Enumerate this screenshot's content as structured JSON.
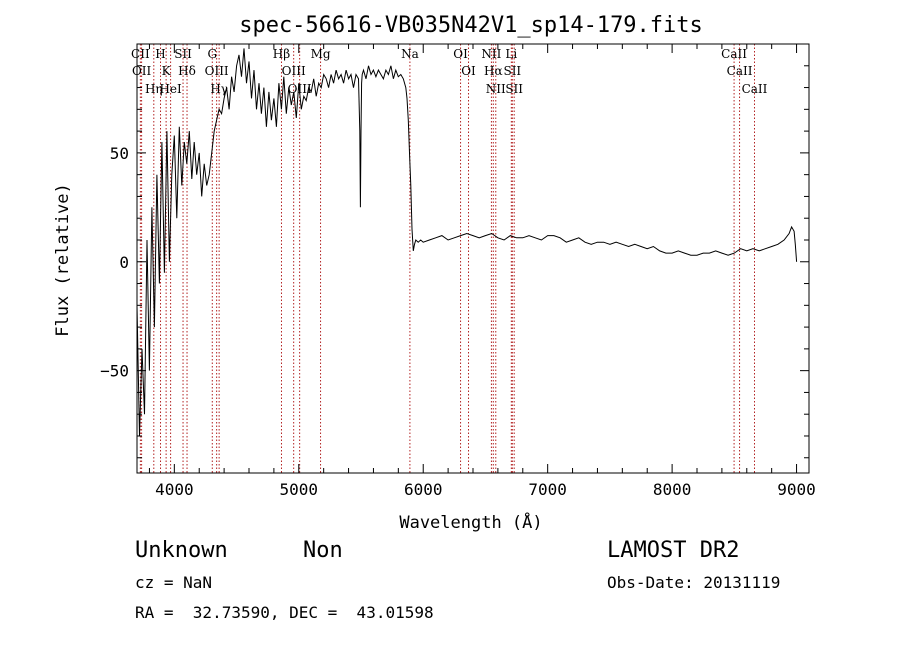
{
  "chart_data": {
    "type": "line",
    "title": "spec-56616-VB035N42V1_sp14-179.fits",
    "xlabel": "Wavelength (Å)",
    "ylabel": "Flux (relative)",
    "xlim": [
      3700,
      9100
    ],
    "ylim": [
      -97,
      100
    ],
    "xticks": [
      "4000",
      "5000",
      "6000",
      "7000",
      "8000",
      "9000"
    ],
    "yticks": [
      "−50",
      "0",
      "50"
    ],
    "grid": false,
    "series": [
      {
        "x": [
          3700,
          3720,
          3740,
          3760,
          3780,
          3800,
          3820,
          3840,
          3860,
          3880,
          3900,
          3920,
          3940,
          3960,
          3980,
          4000,
          4020,
          4040,
          4060,
          4080,
          4100,
          4120,
          4140,
          4160,
          4180,
          4200,
          4220,
          4240,
          4260,
          4280,
          4300,
          4320,
          4340,
          4360,
          4380,
          4400,
          4420,
          4440,
          4460,
          4480,
          4500,
          4520,
          4540,
          4560,
          4580,
          4600,
          4620,
          4640,
          4660,
          4680,
          4700,
          4720,
          4740,
          4760,
          4780,
          4800,
          4820,
          4840,
          4860,
          4880,
          4900,
          4920,
          4940,
          4960,
          4980,
          5000,
          5020,
          5040,
          5060,
          5080,
          5100,
          5120,
          5140,
          5160,
          5180,
          5200,
          5220,
          5240,
          5260,
          5280,
          5300,
          5320,
          5340,
          5360,
          5380,
          5400,
          5420,
          5440,
          5460,
          5480,
          5490,
          5495,
          5500,
          5505,
          5510,
          5520,
          5540,
          5560,
          5580,
          5600,
          5620,
          5640,
          5660,
          5680,
          5700,
          5720,
          5740,
          5760,
          5780,
          5800,
          5820,
          5840,
          5860,
          5870,
          5880,
          5890,
          5900,
          5910,
          5920,
          5930,
          5940,
          5960,
          5980,
          6000,
          6050,
          6100,
          6150,
          6200,
          6250,
          6300,
          6350,
          6400,
          6450,
          6500,
          6550,
          6600,
          6650,
          6700,
          6750,
          6800,
          6850,
          6900,
          6950,
          7000,
          7050,
          7100,
          7150,
          7200,
          7250,
          7300,
          7350,
          7400,
          7450,
          7500,
          7550,
          7600,
          7650,
          7700,
          7750,
          7800,
          7850,
          7900,
          7950,
          8000,
          8050,
          8100,
          8150,
          8200,
          8250,
          8300,
          8350,
          8400,
          8450,
          8500,
          8550,
          8600,
          8650,
          8700,
          8750,
          8800,
          8850,
          8900,
          8940,
          8960,
          8980,
          8990,
          9000
        ],
        "y": [
          -20,
          -80,
          -40,
          -70,
          10,
          -50,
          25,
          -30,
          40,
          -10,
          55,
          -5,
          60,
          0,
          40,
          58,
          20,
          62,
          35,
          55,
          45,
          60,
          38,
          55,
          40,
          50,
          30,
          45,
          35,
          40,
          50,
          60,
          65,
          70,
          68,
          75,
          80,
          70,
          85,
          78,
          90,
          95,
          85,
          98,
          82,
          92,
          75,
          88,
          70,
          82,
          68,
          80,
          62,
          78,
          65,
          75,
          62,
          82,
          70,
          85,
          68,
          80,
          72,
          78,
          66,
          82,
          70,
          76,
          74,
          80,
          78,
          84,
          76,
          82,
          80,
          86,
          84,
          80,
          86,
          82,
          88,
          84,
          86,
          82,
          88,
          84,
          86,
          80,
          86,
          84,
          60,
          25,
          60,
          82,
          86,
          88,
          84,
          90,
          86,
          88,
          85,
          88,
          86,
          84,
          88,
          86,
          90,
          84,
          88,
          85,
          86,
          84,
          80,
          75,
          65,
          50,
          35,
          15,
          5,
          8,
          10,
          9,
          10,
          9,
          10,
          11,
          12,
          10,
          11,
          12,
          13,
          12,
          11,
          12,
          13,
          11,
          10,
          12,
          11,
          11,
          12,
          11,
          10,
          12,
          12,
          11,
          9,
          10,
          11,
          9,
          8,
          9,
          9,
          8,
          9,
          8,
          7,
          8,
          7,
          6,
          7,
          5,
          4,
          4,
          5,
          4,
          3,
          3,
          4,
          4,
          5,
          4,
          3,
          4,
          6,
          5,
          6,
          5,
          6,
          7,
          8,
          10,
          13,
          16,
          14,
          8,
          0
        ]
      }
    ],
    "annotations": [
      {
        "label": "CII",
        "x": 3727
      },
      {
        "label": "OII",
        "x": 3737
      },
      {
        "label": "Hη",
        "x": 3835
      },
      {
        "label": "H",
        "x": 3889
      },
      {
        "label": "K",
        "x": 3934
      },
      {
        "label": "HeI",
        "x": 3970
      },
      {
        "label": "SII",
        "x": 4070
      },
      {
        "label": "Hδ",
        "x": 4102
      },
      {
        "label": "G",
        "x": 4305
      },
      {
        "label": "OIII",
        "x": 4340
      },
      {
        "label": "Hγ",
        "x": 4360
      },
      {
        "label": "Hβ",
        "x": 4861
      },
      {
        "label": "OIII",
        "x": 4959
      },
      {
        "label": "OIII",
        "x": 5007
      },
      {
        "label": "Mg",
        "x": 5175
      },
      {
        "label": "Na",
        "x": 5893
      },
      {
        "label": "OI",
        "x": 6300
      },
      {
        "label": "OI",
        "x": 6364
      },
      {
        "label": "NII",
        "x": 6548
      },
      {
        "label": "Hα",
        "x": 6563
      },
      {
        "label": "NII",
        "x": 6583
      },
      {
        "label": "Li",
        "x": 6708
      },
      {
        "label": "SII",
        "x": 6716
      },
      {
        "label": "SII",
        "x": 6731
      },
      {
        "label": "CaII",
        "x": 8498
      },
      {
        "label": "CaII",
        "x": 8542
      },
      {
        "label": "CaII",
        "x": 8662
      }
    ]
  },
  "info": {
    "object_class": "Unknown",
    "object_subclass": "Non",
    "survey": "LAMOST DR2",
    "cz": "cz = NaN",
    "obs_date": "Obs-Date: 20131119",
    "coords": "RA =  32.73590, DEC =  43.01598"
  },
  "colors": {
    "line": "#000000",
    "markers": "#b22222",
    "background": "#ffffff"
  }
}
